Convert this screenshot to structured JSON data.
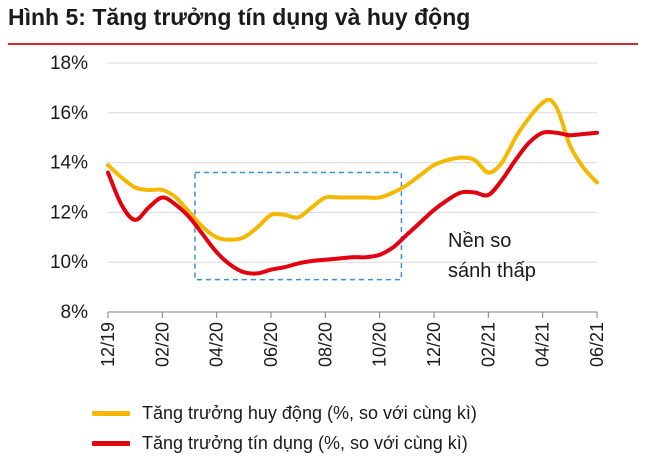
{
  "title": "Hình 5: Tăng trưởng tín dụng và huy động",
  "colors": {
    "accent_rule": "#d6282f",
    "grid": "#d9d9d9",
    "highlight_box": "#3a8fd1"
  },
  "annotation": {
    "line1": "Nền so",
    "line2": "sánh thấp"
  },
  "chart_data": {
    "type": "line",
    "title": "Hình 5: Tăng trưởng tín dụng và huy động",
    "xlabel": "",
    "ylabel": "",
    "ylim": [
      8,
      18
    ],
    "yticks": [
      8,
      10,
      12,
      14,
      16,
      18
    ],
    "ytick_labels": [
      "8%",
      "10%",
      "12%",
      "14%",
      "16%",
      "18%"
    ],
    "xlim": [
      0,
      18
    ],
    "xticks": [
      0,
      2,
      4,
      6,
      8,
      10,
      12,
      14,
      16,
      18
    ],
    "xtick_labels": [
      "12/19",
      "02/20",
      "04/20",
      "06/20",
      "08/20",
      "10/20",
      "12/20",
      "02/21",
      "04/21",
      "06/21"
    ],
    "grid": "horizontal",
    "legend_position": "bottom",
    "highlight_region": {
      "x": [
        3.2,
        10.8
      ],
      "y": [
        9.3,
        13.6
      ],
      "note": "Nền so sánh thấp"
    },
    "series": [
      {
        "name": "Tăng trưởng huy động (%, so với cùng kì)",
        "color": "#f5b800",
        "x": [
          0,
          0.5,
          1,
          1.5,
          2,
          2.5,
          3,
          3.5,
          4,
          4.5,
          5,
          5.5,
          6,
          6.5,
          7,
          7.5,
          8,
          8.5,
          9,
          9.5,
          10,
          10.5,
          11,
          11.5,
          12,
          12.5,
          13,
          13.5,
          14,
          14.5,
          15,
          15.5,
          16,
          16.3,
          16.6,
          17,
          17.5,
          18
        ],
        "values": [
          13.9,
          13.4,
          13.0,
          12.9,
          12.9,
          12.6,
          12.0,
          11.4,
          11.0,
          10.9,
          11.0,
          11.4,
          11.9,
          11.9,
          11.8,
          12.2,
          12.6,
          12.6,
          12.6,
          12.6,
          12.6,
          12.8,
          13.1,
          13.5,
          13.9,
          14.1,
          14.2,
          14.1,
          13.6,
          14.0,
          15.0,
          15.8,
          16.4,
          16.5,
          16.0,
          14.7,
          13.8,
          13.2
        ]
      },
      {
        "name": "Tăng trưởng tín dụng (%, so với cùng kì)",
        "color": "#e3000f",
        "x": [
          0,
          0.5,
          1,
          1.5,
          2,
          2.5,
          3,
          3.5,
          4,
          4.5,
          5,
          5.5,
          6,
          6.5,
          7,
          7.5,
          8,
          8.5,
          9,
          9.5,
          10,
          10.5,
          11,
          11.5,
          12,
          12.5,
          13,
          13.5,
          14,
          14.5,
          15,
          15.5,
          16,
          16.5,
          17,
          17.5,
          18
        ],
        "values": [
          13.6,
          12.3,
          11.7,
          12.2,
          12.6,
          12.3,
          11.8,
          11.1,
          10.4,
          9.9,
          9.6,
          9.55,
          9.7,
          9.8,
          9.95,
          10.05,
          10.1,
          10.15,
          10.2,
          10.2,
          10.3,
          10.6,
          11.1,
          11.6,
          12.1,
          12.5,
          12.8,
          12.8,
          12.7,
          13.3,
          14.1,
          14.8,
          15.2,
          15.2,
          15.1,
          15.15,
          15.2
        ]
      }
    ]
  }
}
